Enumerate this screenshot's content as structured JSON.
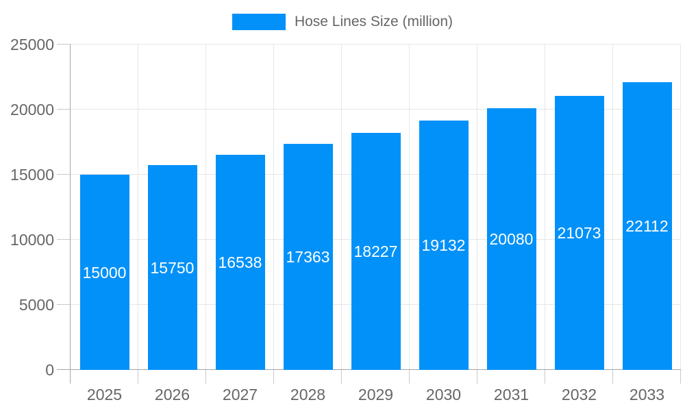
{
  "legend": {
    "label": "Hose Lines Size (million)"
  },
  "chart_data": {
    "type": "bar",
    "title": "",
    "series_name": "Hose Lines Size (million)",
    "categories": [
      "2025",
      "2026",
      "2027",
      "2028",
      "2029",
      "2030",
      "2031",
      "2032",
      "2033"
    ],
    "values": [
      15000,
      15750,
      16538,
      17363,
      18227,
      19132,
      20080,
      21073,
      22112
    ],
    "bar_value_labels": [
      "15000",
      "15750",
      "16538",
      "17363",
      "18227",
      "19132",
      "20080",
      "21073",
      "22112"
    ],
    "xlabel": "",
    "ylabel": "",
    "ylim": [
      0,
      25000
    ],
    "ytick_step": 5000,
    "ytick_labels": [
      "0",
      "5000",
      "10000",
      "15000",
      "20000",
      "25000"
    ],
    "grid": true,
    "legend_position": "top"
  },
  "colors": {
    "bar": "#0291f8",
    "grid": "#e6e6e6",
    "tick": "#c9c9c9",
    "axis": "#a6a6a6",
    "tick_label": "#666666",
    "legend_label": "#666666",
    "value_label": "#ffffff",
    "background": "#ffffff"
  }
}
